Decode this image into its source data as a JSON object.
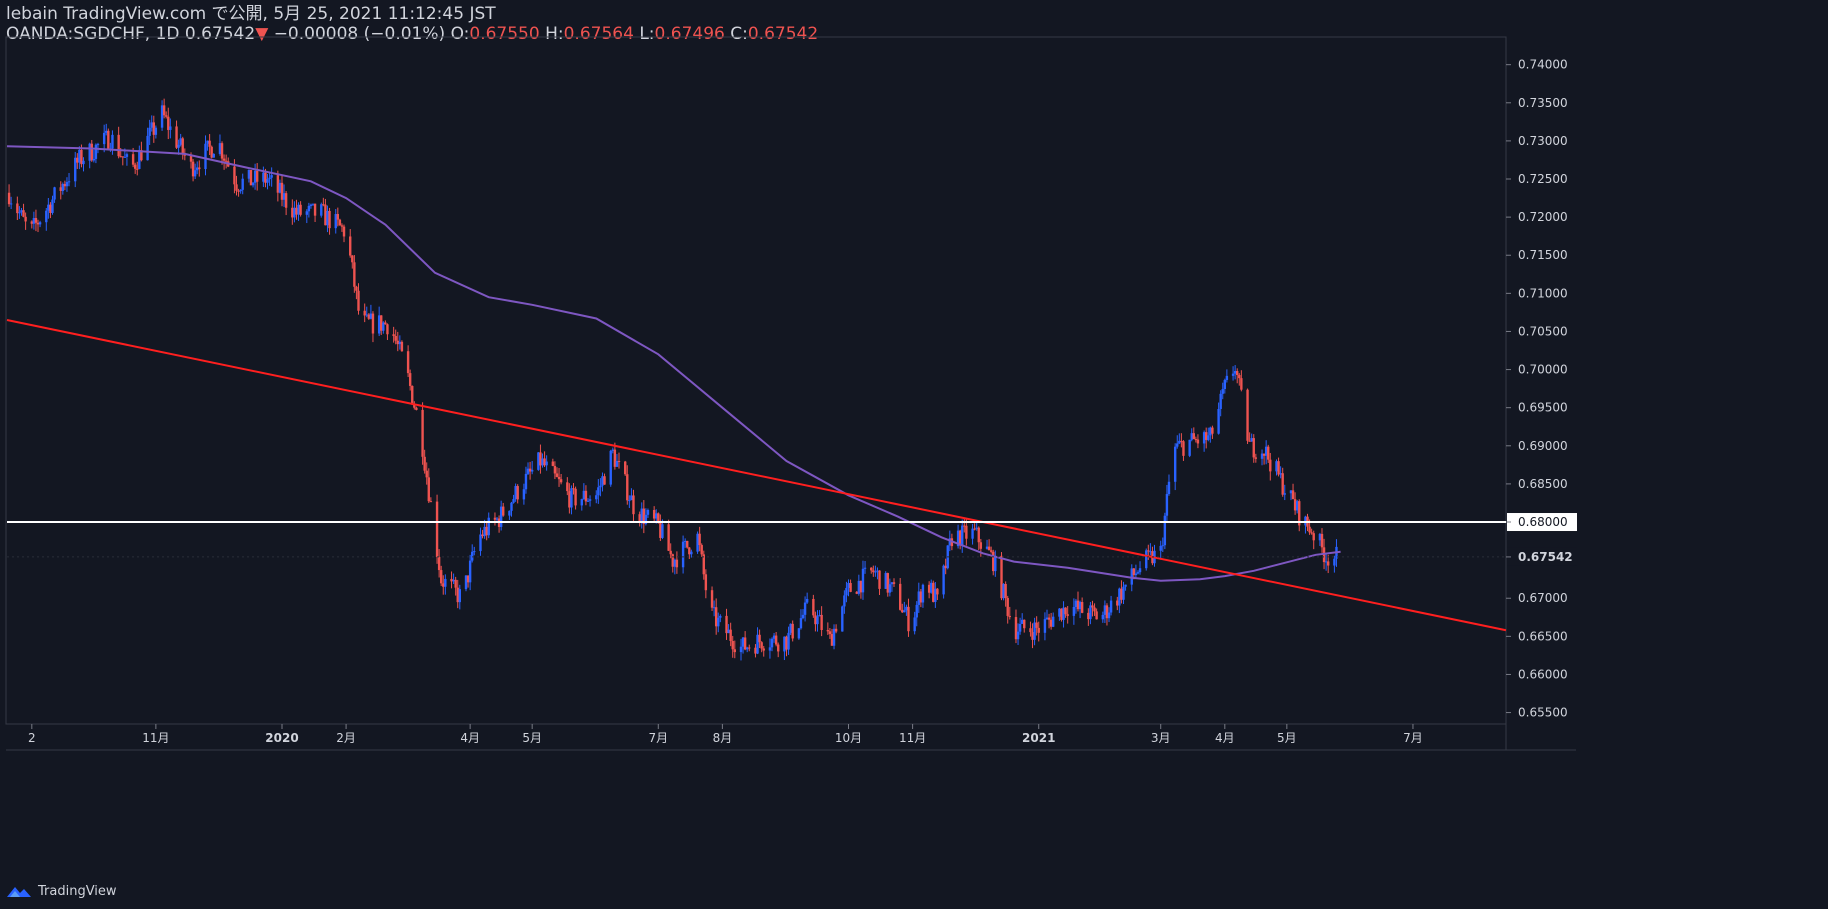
{
  "header": {
    "publish_line": "lebain TradingView.com で公開, 5月 25, 2021 11:12:45 JST",
    "symbol": "OANDA:SGDCHF, 1D",
    "last": "0.67542",
    "arrow": "▼",
    "change": "−0.00008 (−0.01%)",
    "o_label": "O:",
    "o_value": "0.67550",
    "h_label": "H:",
    "h_value": "0.67564",
    "l_label": "L:",
    "l_value": "0.67496",
    "c_label": "C:",
    "c_value": "0.67542"
  },
  "footer": {
    "brand": "TradingView"
  },
  "colors": {
    "background": "#131722",
    "up": "#2962ff",
    "down": "#ef5350",
    "ma": "#7e57c2",
    "trendline": "#ff1f1f",
    "hline": "#ffffff",
    "grid": "#1e222d",
    "axis_text": "#d1d4dc"
  },
  "chart_data": {
    "type": "candlestick",
    "symbol": "OANDA:SGDCHF",
    "interval": "1D",
    "ylim": [
      0.6535,
      0.7435
    ],
    "y_ticks": [
      "0.74000",
      "0.73500",
      "0.73000",
      "0.72500",
      "0.72000",
      "0.71500",
      "0.71000",
      "0.70500",
      "0.70000",
      "0.69500",
      "0.69000",
      "0.68500",
      "0.68000",
      "0.67542",
      "0.67000",
      "0.66500",
      "0.66000",
      "0.65500"
    ],
    "x_ticks": [
      "2",
      "11月",
      "2020",
      "2月",
      "4月",
      "5月",
      "7月",
      "8月",
      "10月",
      "11月",
      "2021",
      "3月",
      "4月",
      "5月",
      "7月"
    ],
    "x_tick_dates": [
      "2019-09-02",
      "2019-11-01",
      "2020-01-01",
      "2020-02-01",
      "2020-04-01",
      "2020-05-01",
      "2020-07-01",
      "2020-08-01",
      "2020-10-01",
      "2020-11-01",
      "2021-01-01",
      "2021-03-01",
      "2021-04-01",
      "2021-05-01",
      "2021-07-01"
    ],
    "x_range": [
      "2019-08-21",
      "2021-08-15"
    ],
    "price_path": [
      [
        "2019-08-22",
        0.7232
      ],
      [
        "2019-09-01",
        0.7178
      ],
      [
        "2019-09-15",
        0.7235
      ],
      [
        "2019-09-25",
        0.7275
      ],
      [
        "2019-10-10",
        0.7305
      ],
      [
        "2019-10-20",
        0.7262
      ],
      [
        "2019-11-04",
        0.7335
      ],
      [
        "2019-11-18",
        0.7265
      ],
      [
        "2019-12-01",
        0.73
      ],
      [
        "2019-12-10",
        0.7245
      ],
      [
        "2019-12-25",
        0.725
      ],
      [
        "2020-01-08",
        0.7205
      ],
      [
        "2020-01-20",
        0.7205
      ],
      [
        "2020-02-01",
        0.718
      ],
      [
        "2020-02-08",
        0.706
      ],
      [
        "2020-02-22",
        0.706
      ],
      [
        "2020-03-01",
        0.7
      ],
      [
        "2020-03-08",
        0.692
      ],
      [
        "2020-03-18",
        0.6725
      ],
      [
        "2020-03-28",
        0.67
      ],
      [
        "2020-04-05",
        0.678
      ],
      [
        "2020-04-15",
        0.6805
      ],
      [
        "2020-04-25",
        0.6845
      ],
      [
        "2020-05-05",
        0.688
      ],
      [
        "2020-05-20",
        0.683
      ],
      [
        "2020-06-01",
        0.6835
      ],
      [
        "2020-06-09",
        0.689
      ],
      [
        "2020-06-20",
        0.6815
      ],
      [
        "2020-07-01",
        0.6795
      ],
      [
        "2020-07-08",
        0.675
      ],
      [
        "2020-07-20",
        0.678
      ],
      [
        "2020-07-26",
        0.668
      ],
      [
        "2020-08-10",
        0.6635
      ],
      [
        "2020-08-20",
        0.6645
      ],
      [
        "2020-09-01",
        0.6645
      ],
      [
        "2020-09-12",
        0.669
      ],
      [
        "2020-09-22",
        0.6645
      ],
      [
        "2020-10-01",
        0.671
      ],
      [
        "2020-10-13",
        0.6735
      ],
      [
        "2020-10-24",
        0.6705
      ],
      [
        "2020-10-31",
        0.6665
      ],
      [
        "2020-11-07",
        0.6725
      ],
      [
        "2020-11-13",
        0.6695
      ],
      [
        "2020-11-20",
        0.678
      ],
      [
        "2020-12-01",
        0.6785
      ],
      [
        "2020-12-10",
        0.675
      ],
      [
        "2020-12-20",
        0.666
      ],
      [
        "2021-01-01",
        0.666
      ],
      [
        "2021-01-15",
        0.669
      ],
      [
        "2021-01-31",
        0.6675
      ],
      [
        "2021-02-09",
        0.6705
      ],
      [
        "2021-02-20",
        0.6745
      ],
      [
        "2021-03-01",
        0.676
      ],
      [
        "2021-03-07",
        0.6895
      ],
      [
        "2021-03-15",
        0.6905
      ],
      [
        "2021-03-25",
        0.691
      ],
      [
        "2021-04-01",
        0.6975
      ],
      [
        "2021-04-06",
        0.7005
      ],
      [
        "2021-04-13",
        0.69
      ],
      [
        "2021-04-20",
        0.6895
      ],
      [
        "2021-05-01",
        0.684
      ],
      [
        "2021-05-09",
        0.68
      ],
      [
        "2021-05-13",
        0.679
      ],
      [
        "2021-05-20",
        0.6755
      ],
      [
        "2021-05-25",
        0.6754
      ]
    ],
    "moving_average": [
      [
        "2019-08-21",
        0.7293
      ],
      [
        "2019-10-01",
        0.729
      ],
      [
        "2019-11-15",
        0.7283
      ],
      [
        "2019-12-15",
        0.7265
      ],
      [
        "2020-01-15",
        0.7247
      ],
      [
        "2020-02-01",
        0.7225
      ],
      [
        "2020-02-20",
        0.719
      ],
      [
        "2020-03-15",
        0.7127
      ],
      [
        "2020-04-10",
        0.7095
      ],
      [
        "2020-05-01",
        0.7085
      ],
      [
        "2020-06-01",
        0.7067
      ],
      [
        "2020-07-01",
        0.702
      ],
      [
        "2020-08-01",
        0.695
      ],
      [
        "2020-09-01",
        0.688
      ],
      [
        "2020-10-01",
        0.6835
      ],
      [
        "2020-10-25",
        0.6807
      ],
      [
        "2020-11-15",
        0.678
      ],
      [
        "2020-12-05",
        0.6759
      ],
      [
        "2020-12-20",
        0.6748
      ],
      [
        "2021-01-15",
        0.674
      ],
      [
        "2021-02-15",
        0.6727
      ],
      [
        "2021-03-01",
        0.6723
      ],
      [
        "2021-03-20",
        0.6725
      ],
      [
        "2021-04-01",
        0.6729
      ],
      [
        "2021-04-15",
        0.6736
      ],
      [
        "2021-05-15",
        0.6757
      ],
      [
        "2021-05-27",
        0.6761
      ]
    ],
    "trendline": [
      [
        "2019-08-21",
        0.7065
      ],
      [
        "2021-08-15",
        0.6658
      ]
    ],
    "horizontal_level": 0.68,
    "last_price": 0.67542,
    "grid": false,
    "legend": "none"
  }
}
